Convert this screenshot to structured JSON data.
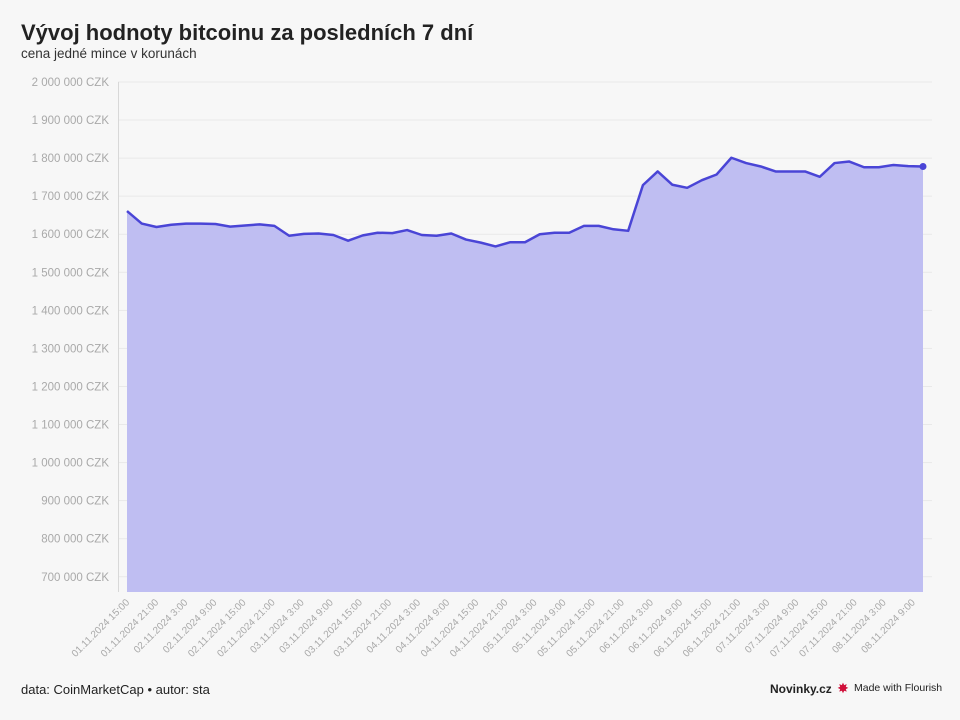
{
  "header": {
    "title": "Vývoj hodnoty bitcoinu za posledních 7 dní",
    "subtitle": "cena jedné mince v korunách"
  },
  "footer": {
    "source": "data: CoinMarketCap • autor: sta",
    "brand": "Novinky.cz",
    "made_with": "Made with Flourish",
    "made_with_icon": "flourish-logo-icon"
  },
  "colors": {
    "line": "#4a45d6",
    "area": "#bfbef2",
    "grid": "#e9e9e9",
    "tick_text": "#a9a9a9"
  },
  "chart_data": {
    "type": "area",
    "title": "Vývoj hodnoty bitcoinu za posledních 7 dní",
    "subtitle": "cena jedné mince v korunách",
    "ylim": [
      660000,
      2000000
    ],
    "y_ticks": [
      700000,
      800000,
      900000,
      1000000,
      1100000,
      1200000,
      1300000,
      1400000,
      1500000,
      1600000,
      1700000,
      1800000,
      1900000,
      2000000
    ],
    "y_tick_labels": [
      "700 000 CZK",
      "800 000 CZK",
      "900 000 CZK",
      "1 000 000 CZK",
      "1 100 000 CZK",
      "1 200 000 CZK",
      "1 300 000 CZK",
      "1 400 000 CZK",
      "1 500 000 CZK",
      "1 600 000 CZK",
      "1 700 000 CZK",
      "1 800 000 CZK",
      "1 900 000 CZK",
      "2 000 000 CZK"
    ],
    "x_tick_labels": [
      "01.11.2024 15:00",
      "01.11.2024 21:00",
      "02.11.2024 3:00",
      "02.11.2024 9:00",
      "02.11.2024 15:00",
      "02.11.2024 21:00",
      "03.11.2024 3:00",
      "03.11.2024 9:00",
      "03.11.2024 15:00",
      "03.11.2024 21:00",
      "04.11.2024 3:00",
      "04.11.2024 9:00",
      "04.11.2024 15:00",
      "04.11.2024 21:00",
      "05.11.2024 3:00",
      "05.11.2024 9:00",
      "05.11.2024 15:00",
      "05.11.2024 21:00",
      "06.11.2024 3:00",
      "06.11.2024 9:00",
      "06.11.2024 15:00",
      "06.11.2024 21:00",
      "07.11.2024 3:00",
      "07.11.2024 9:00",
      "07.11.2024 15:00",
      "07.11.2024 21:00",
      "08.11.2024 3:00",
      "08.11.2024 9:00"
    ],
    "grid": true,
    "series": [
      {
        "values": [
          1661000,
          1628000,
          1619000,
          1625000,
          1628000,
          1628000,
          1627000,
          1620000,
          1623000,
          1626000,
          1622000,
          1596000,
          1601000,
          1602000,
          1598000,
          1583000,
          1597000,
          1604000,
          1603000,
          1611000,
          1598000,
          1596000,
          1602000,
          1586000,
          1578000,
          1568000,
          1579000,
          1579000,
          1600000,
          1604000,
          1604000,
          1622000,
          1622000,
          1613000,
          1609000,
          1729000,
          1765000,
          1730000,
          1722000,
          1742000,
          1757000,
          1801000,
          1787000,
          1778000,
          1765000,
          1765000,
          1765000,
          1751000,
          1787000,
          1791000,
          1776000,
          1776000,
          1782000,
          1779000,
          1778000
        ]
      }
    ]
  }
}
